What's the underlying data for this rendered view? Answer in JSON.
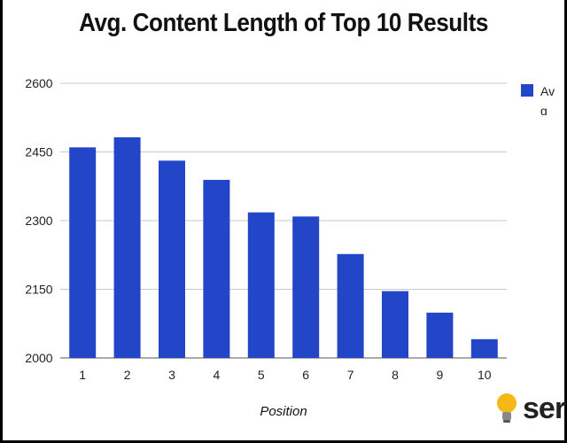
{
  "chart_data": {
    "type": "bar",
    "title": "Avg. Content Length of Top 10 Results",
    "xlabel": "Position",
    "ylabel": "",
    "categories": [
      "1",
      "2",
      "3",
      "4",
      "5",
      "6",
      "7",
      "8",
      "9",
      "10"
    ],
    "series": [
      {
        "name": "Avg Length",
        "values": [
          2460,
          2482,
          2431,
          2389,
          2318,
          2309,
          2227,
          2146,
          2099,
          2041
        ],
        "color": "#2346c8"
      }
    ],
    "ylim": [
      2000,
      2600
    ],
    "yticks": [
      "2000",
      "2150",
      "2300",
      "2450",
      "2600"
    ],
    "grid": true,
    "legend_position": "right"
  },
  "legend": {
    "label": "Avg Length"
  },
  "logo": {
    "text": "ser",
    "icon": "lightbulb-icon",
    "bulb_color": "#f5b817"
  }
}
